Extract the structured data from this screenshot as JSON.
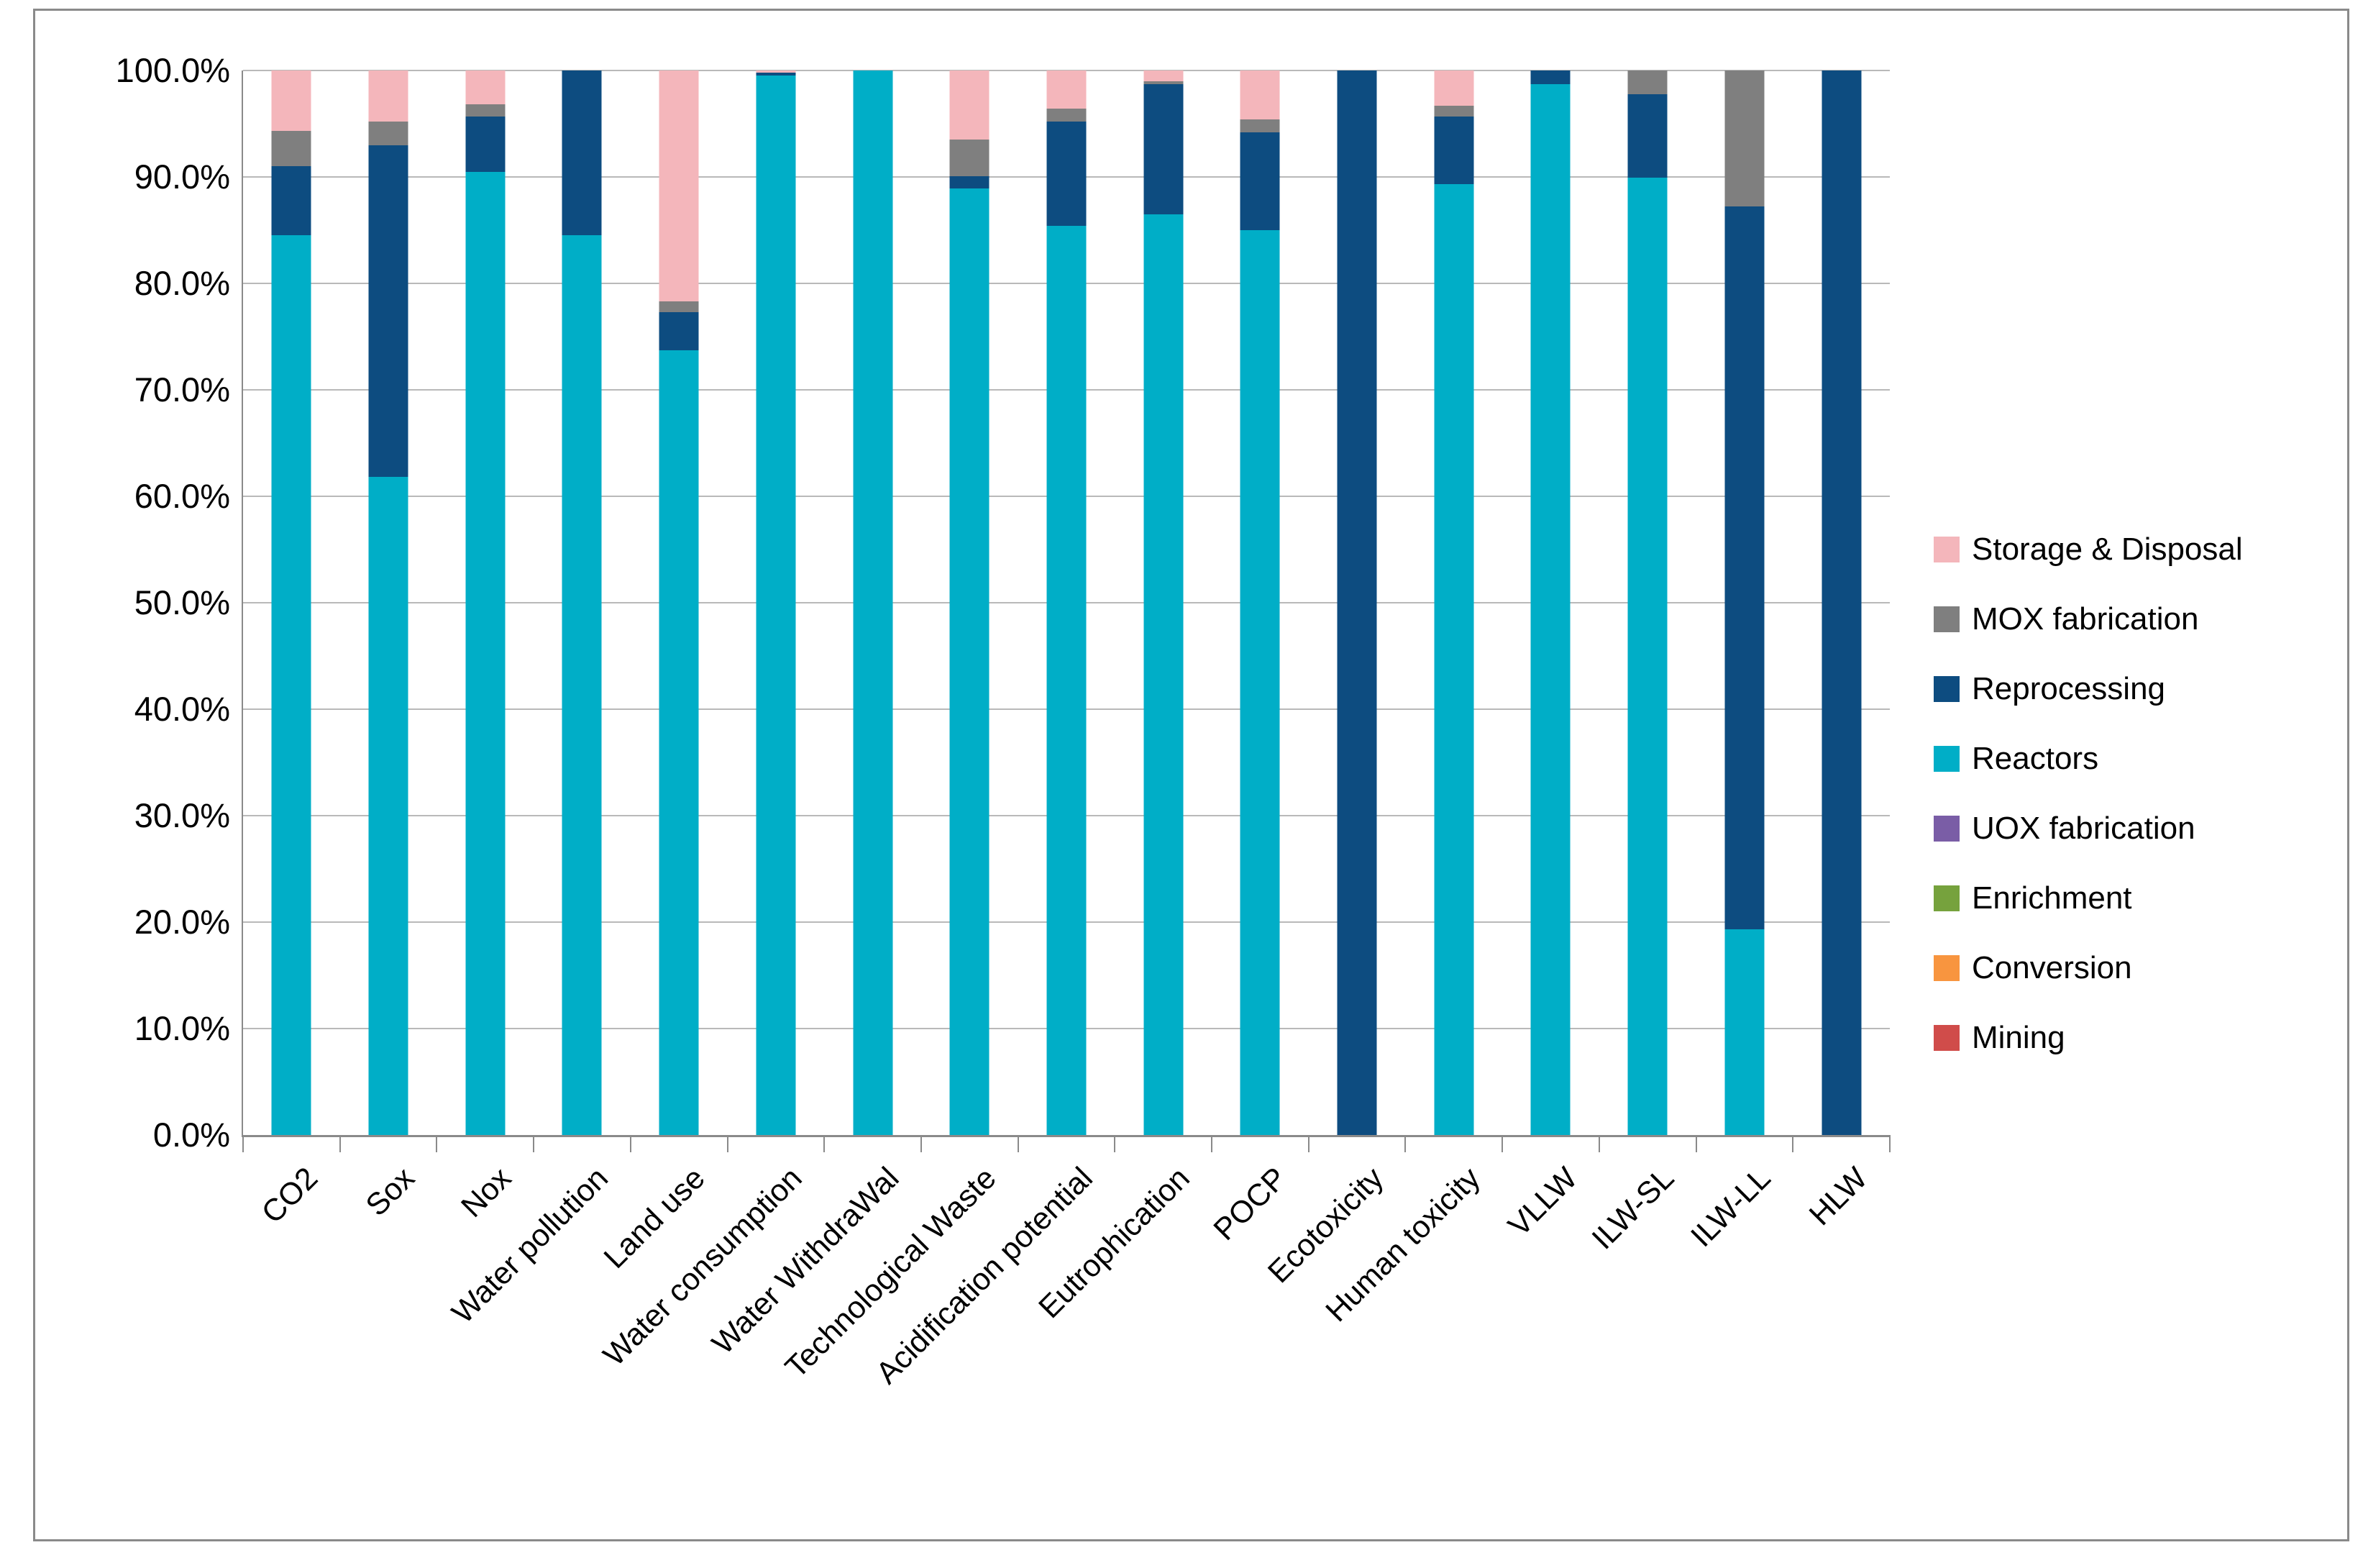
{
  "chart_data": {
    "type": "bar",
    "variant": "stacked-100-percent",
    "title": "",
    "xlabel": "",
    "ylabel": "",
    "ylim": [
      0,
      100
    ],
    "grid": "horizontal",
    "y_ticks": [
      "100.0%",
      "90.0%",
      "80.0%",
      "70.0%",
      "60.0%",
      "50.0%",
      "40.0%",
      "30.0%",
      "20.0%",
      "10.0%",
      "0.0%"
    ],
    "categories": [
      "CO2",
      "Sox",
      "Nox",
      "Water pollution",
      "Land use",
      "Water consumption",
      "Water WithdraWal",
      "Technological Waste",
      "Acidification potential",
      "Eutrophication",
      "POCP",
      "Ecotoxicity",
      "Human toxicity",
      "VLLW",
      "ILW-SL",
      "ILW-LL",
      "HLW"
    ],
    "series": [
      {
        "name": "Mining",
        "color": "#d04c4a",
        "values": [
          0,
          0,
          0,
          0,
          0,
          0,
          0,
          0,
          0,
          0,
          0,
          0,
          0,
          0,
          0,
          0,
          0
        ]
      },
      {
        "name": "Conversion",
        "color": "#f8953f",
        "values": [
          0,
          0,
          0,
          0,
          0,
          0,
          0,
          0,
          0,
          0,
          0,
          0,
          0,
          0,
          0,
          0,
          0
        ]
      },
      {
        "name": "Enrichment",
        "color": "#76a23d",
        "values": [
          0,
          0,
          0,
          0,
          0,
          0,
          0,
          0,
          0,
          0,
          0,
          0,
          0,
          0,
          0,
          0,
          0
        ]
      },
      {
        "name": "UOX fabrication",
        "color": "#7a5da6",
        "values": [
          0,
          0,
          0,
          0,
          0,
          0,
          0,
          0,
          0,
          0,
          0,
          0,
          0,
          0,
          0,
          0,
          0
        ]
      },
      {
        "name": "Reactors",
        "color": "#00aec7",
        "values": [
          84.5,
          61.8,
          90.5,
          84.5,
          73.7,
          99.5,
          100,
          88.9,
          85.4,
          86.5,
          85.0,
          0,
          89.3,
          98.7,
          89.9,
          19.3,
          0
        ]
      },
      {
        "name": "Reprocessing",
        "color": "#0d4c80",
        "values": [
          6.5,
          31.2,
          5.2,
          15.5,
          3.6,
          0.3,
          0,
          1.2,
          9.8,
          12.2,
          9.2,
          100,
          6.4,
          1.3,
          7.9,
          67.9,
          100
        ]
      },
      {
        "name": "MOX fabrication",
        "color": "#7f7f7f",
        "values": [
          3.3,
          2.2,
          1.1,
          0,
          1.0,
          0,
          0,
          3.4,
          1.2,
          0.3,
          1.2,
          0,
          1.0,
          0,
          2.2,
          12.8,
          0
        ]
      },
      {
        "name": "Storage & Disposal",
        "color": "#f4b6bb",
        "values": [
          5.7,
          4.8,
          3.2,
          0,
          21.7,
          0.2,
          0,
          6.5,
          3.6,
          1.0,
          4.6,
          0,
          3.3,
          0,
          0,
          0,
          0
        ]
      }
    ],
    "legend": {
      "position": "right",
      "entries": [
        {
          "label": "Storage & Disposal",
          "color": "#f4b6bb"
        },
        {
          "label": "MOX fabrication",
          "color": "#7f7f7f"
        },
        {
          "label": "Reprocessing",
          "color": "#0d4c80"
        },
        {
          "label": "Reactors",
          "color": "#00aec7"
        },
        {
          "label": "UOX fabrication",
          "color": "#7a5da6"
        },
        {
          "label": "Enrichment",
          "color": "#76a23d"
        },
        {
          "label": "Conversion",
          "color": "#f8953f"
        },
        {
          "label": "Mining",
          "color": "#d04c4a"
        }
      ]
    },
    "style": {
      "gridline_color": "#b9b9b9",
      "axis_color": "#8a8a8a",
      "border_color": "#8a8a8a",
      "background": "#ffffff"
    }
  }
}
